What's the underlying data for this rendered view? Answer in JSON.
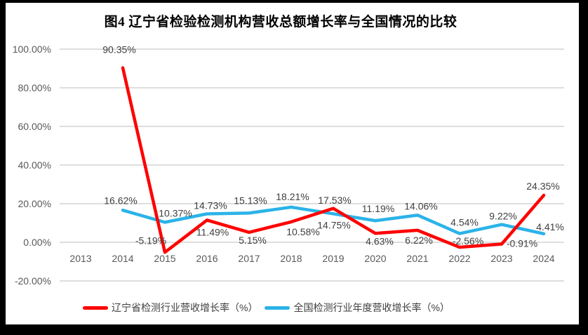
{
  "colors": {
    "liaoning": "#FF0000",
    "national": "#2BB3E8",
    "grid": "#D9D9D9",
    "tick_text": "#595959",
    "data_label_text": "#404040",
    "frame": "#000000",
    "background": "#FFFFFF"
  },
  "chart_data": {
    "type": "line",
    "title": "图4 辽宁省检验检测机构营收总额增长率与全国情况的比较",
    "categories": [
      "2013",
      "2014",
      "2015",
      "2016",
      "2017",
      "2018",
      "2019",
      "2020",
      "2021",
      "2022",
      "2023",
      "2024"
    ],
    "xlabel": "",
    "ylabel": "",
    "y_axis": {
      "min": -20,
      "max": 100,
      "step": 20,
      "tick_values": [
        100,
        80,
        60,
        40,
        20,
        0,
        -20
      ],
      "tick_labels": [
        "100.00%",
        "80.00%",
        "60.00%",
        "40.00%",
        "20.00%",
        "0.00%",
        "-20.00%"
      ]
    },
    "grid": true,
    "legend_position": "bottom",
    "series": [
      {
        "name": "辽宁省检测行业营收增长率（%）",
        "color_key": "liaoning",
        "values": [
          null,
          90.35,
          -5.19,
          11.49,
          5.15,
          10.58,
          17.53,
          4.63,
          6.22,
          -2.56,
          -0.91,
          24.35
        ],
        "labels": [
          "",
          "90.35%",
          "-5.19%",
          "11.49%",
          "5.15%",
          "10.58%",
          "17.53%",
          "4.63%",
          "6.22%",
          "-2.56%",
          "-0.91%",
          "24.35%"
        ],
        "label_offsets": [
          [
            0,
            0
          ],
          [
            -5,
            -26
          ],
          [
            -20,
            -17
          ],
          [
            8,
            17
          ],
          [
            5,
            11
          ],
          [
            17,
            14
          ],
          [
            2,
            -12
          ],
          [
            6,
            11
          ],
          [
            2,
            14
          ],
          [
            12,
            -9
          ],
          [
            29,
            -1
          ],
          [
            -1,
            -13
          ]
        ]
      },
      {
        "name": "全国检测行业年度营收增长率（%）",
        "color_key": "national",
        "values": [
          null,
          16.62,
          10.37,
          14.73,
          15.13,
          18.21,
          14.75,
          11.19,
          14.06,
          4.54,
          9.22,
          4.41
        ],
        "labels": [
          "",
          "16.62%",
          "10.37%",
          "14.73%",
          "15.13%",
          "18.21%",
          "14.75%",
          "11.19%",
          "14.06%",
          "4.54%",
          "9.22%",
          "4.41%"
        ],
        "label_offsets": [
          [
            0,
            0
          ],
          [
            -3,
            -14
          ],
          [
            15,
            -13
          ],
          [
            5,
            -12
          ],
          [
            2,
            -18
          ],
          [
            2,
            -15
          ],
          [
            1,
            16
          ],
          [
            4,
            -17
          ],
          [
            5,
            -13
          ],
          [
            7,
            -16
          ],
          [
            2,
            -12
          ],
          [
            9,
            -10
          ]
        ]
      }
    ]
  }
}
